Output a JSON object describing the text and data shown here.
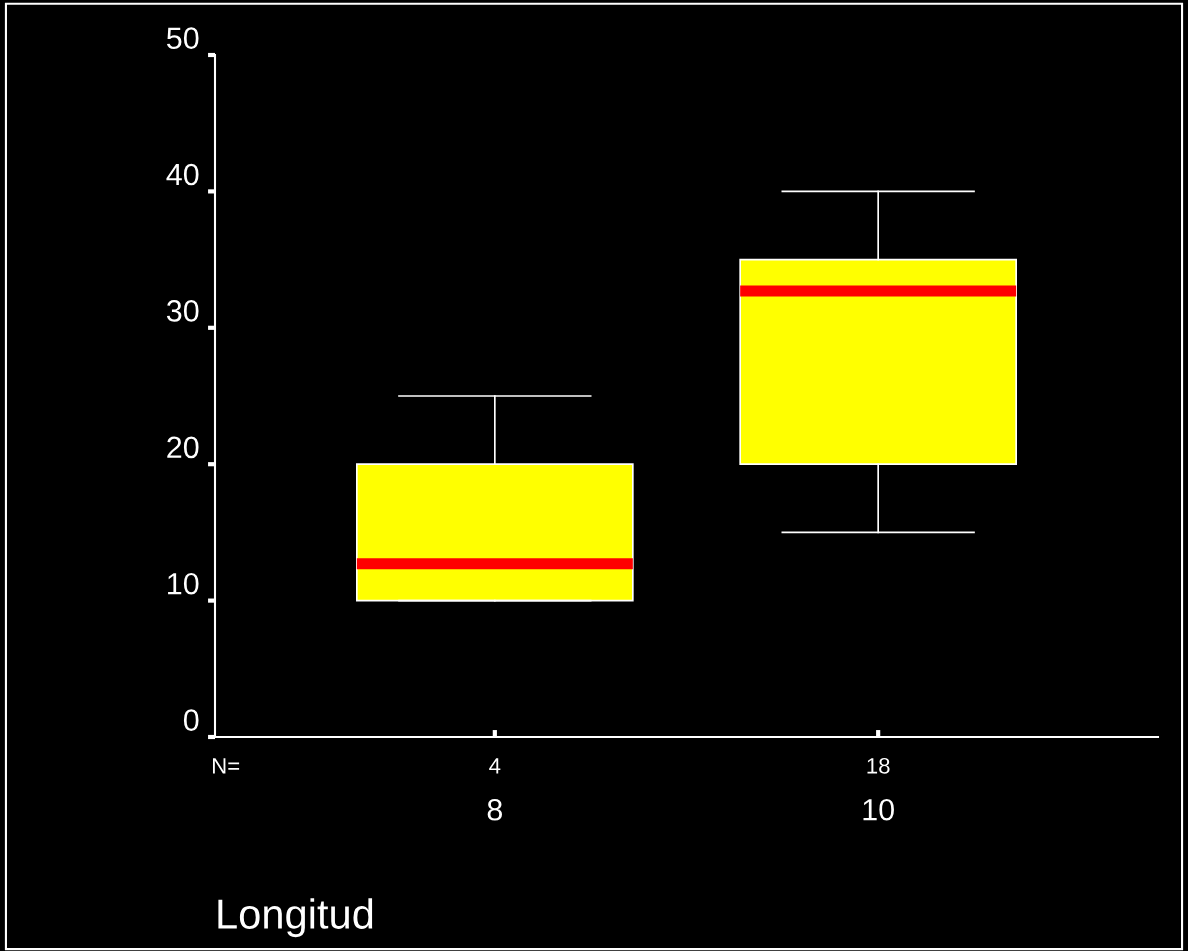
{
  "chart_data": {
    "type": "box",
    "xlabel": "Longitud",
    "categories": [
      "8",
      "10"
    ],
    "boxes": [
      {
        "low": 10,
        "q1": 10,
        "median": 12.7,
        "q3": 20,
        "high": 25
      },
      {
        "low": 15,
        "q1": 20,
        "median": 32.7,
        "q3": 35,
        "high": 40
      }
    ],
    "color": "#ffff00",
    "ylim": [
      0,
      50
    ],
    "yticks": [
      0,
      10,
      20,
      30,
      40,
      50
    ],
    "grid": false,
    "annotations": [
      "N=",
      "4",
      "18"
    ]
  }
}
